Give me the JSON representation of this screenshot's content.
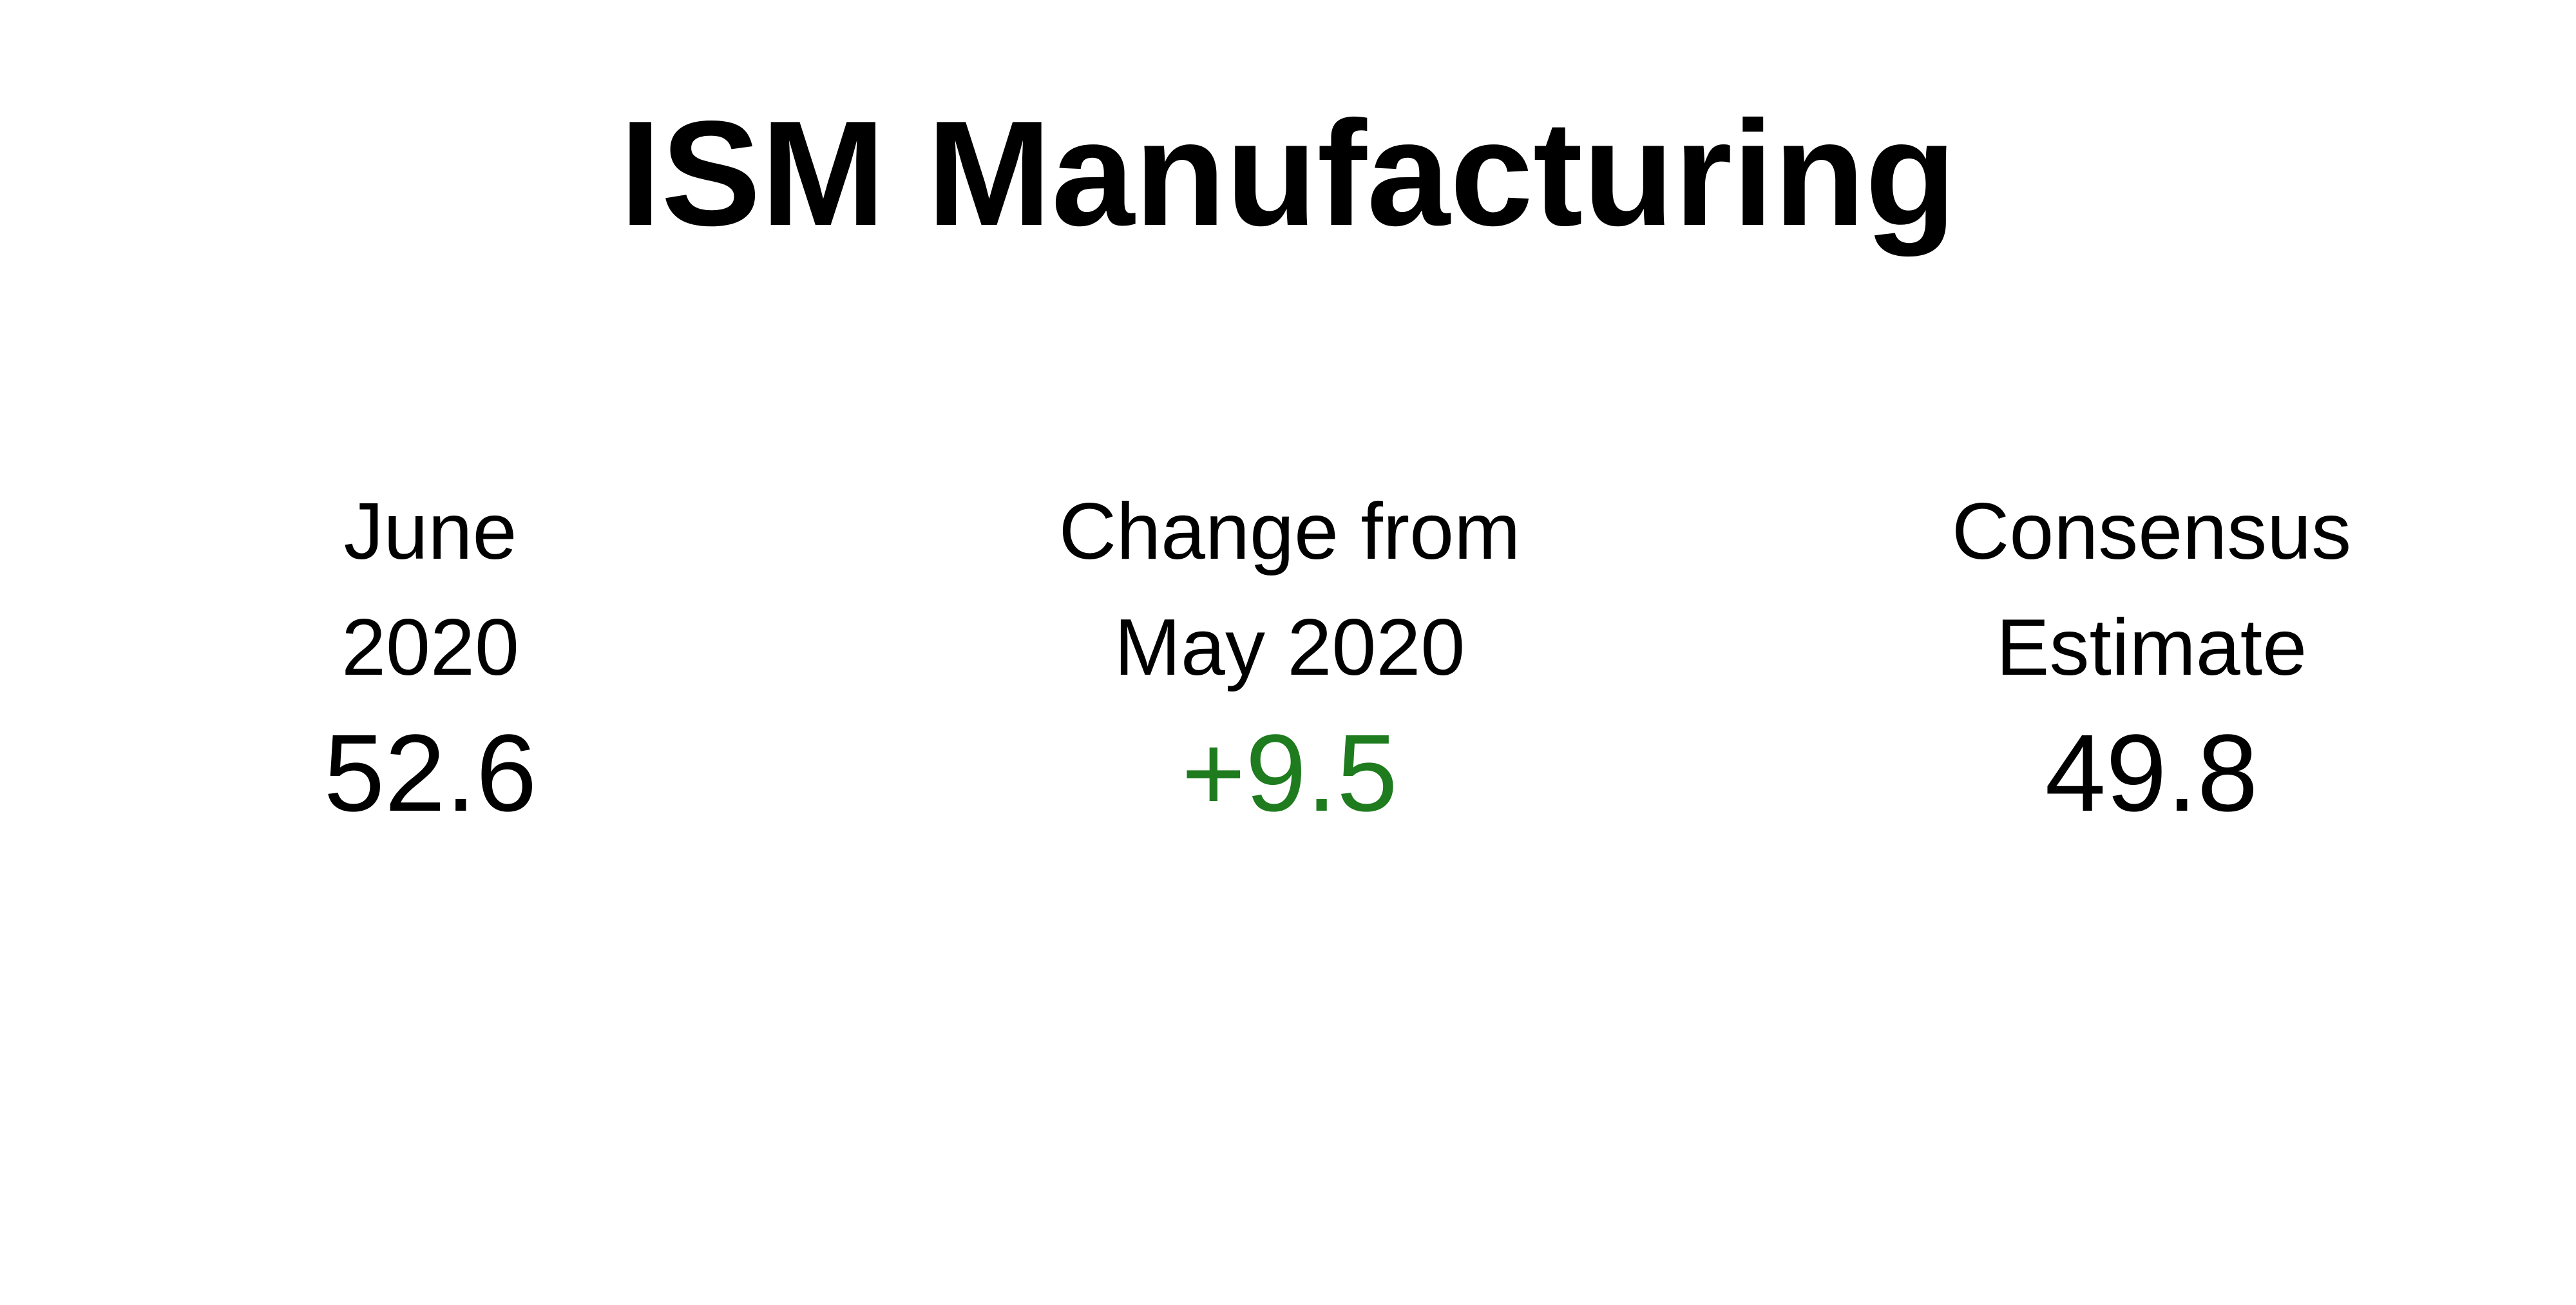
{
  "title": "ISM Manufacturing",
  "metrics": [
    {
      "label_line1": "June",
      "label_line2": "2020",
      "value": "52.6",
      "value_color": "#000000"
    },
    {
      "label_line1": "Change from",
      "label_line2": "May 2020",
      "value": "+9.5",
      "value_color": "#1e7b1e"
    },
    {
      "label_line1": "Consensus",
      "label_line2": "Estimate",
      "value": "49.8",
      "value_color": "#000000"
    }
  ]
}
